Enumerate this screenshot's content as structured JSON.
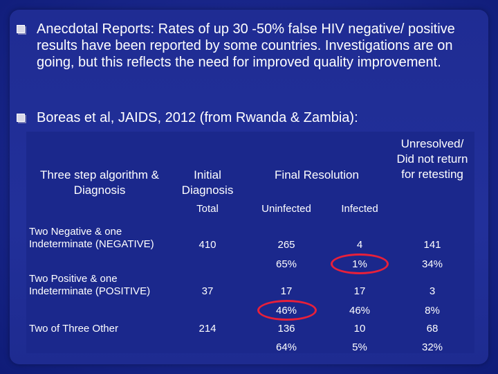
{
  "bullets": [
    {
      "text": "Anecdotal Reports: Rates of up 30 -50% false HIV negative/ positive results have been reported by some countries. Investigations are on going, but this reflects the need for improved quality improvement."
    },
    {
      "text": "Boreas et al, JAIDS, 2012 (from Rwanda & Zambia):"
    }
  ],
  "table": {
    "headers": {
      "algorithm": "Three step algorithm & Diagnosis",
      "initial": "Initial Diagnosis",
      "final": "Final Resolution",
      "unresolved": "Unresolved/ Did not return for retesting"
    },
    "subheaders": {
      "total": "Total",
      "uninfected": "Uninfected",
      "infected": "Infected"
    },
    "rows": [
      {
        "label": "Two Negative & one Indeterminate (NEGATIVE)",
        "total": "410",
        "uninfected": "265",
        "infected": "4",
        "unresolved": "141",
        "uninfected_pct": "65%",
        "infected_pct": "1%",
        "unresolved_pct": "34%"
      },
      {
        "label": "Two Positive & one Indeterminate (POSITIVE)",
        "total": "37",
        "uninfected": "17",
        "infected": "17",
        "unresolved": "3",
        "uninfected_pct": "46%",
        "infected_pct": "46%",
        "unresolved_pct": "8%"
      },
      {
        "label": "Two of Three Other",
        "total": "214",
        "uninfected": "136",
        "infected": "10",
        "unresolved": "68",
        "uninfected_pct": "64%",
        "infected_pct": "5%",
        "unresolved_pct": "32%"
      }
    ]
  },
  "colors": {
    "background": "#1b288e",
    "highlight_oval": "#e8203a",
    "text": "#ffffff"
  }
}
